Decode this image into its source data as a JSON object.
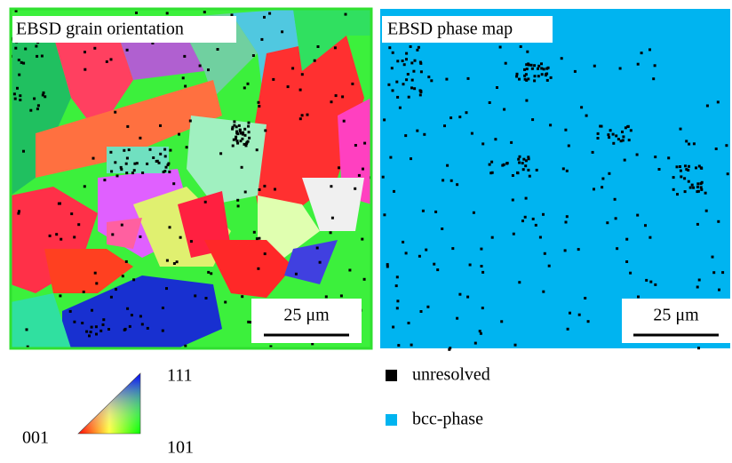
{
  "panels": [
    {
      "title": "EBSD grain orientation",
      "scale_bar": "25 μm"
    },
    {
      "title": "EBSD phase map",
      "scale_bar": "25 μm"
    }
  ],
  "ipf_key": {
    "top": "111",
    "left": "001",
    "right": "101"
  },
  "legend": [
    {
      "label": "unresolved",
      "color": "#000000"
    },
    {
      "label": "bcc-phase",
      "color": "#00b4f0"
    }
  ]
}
